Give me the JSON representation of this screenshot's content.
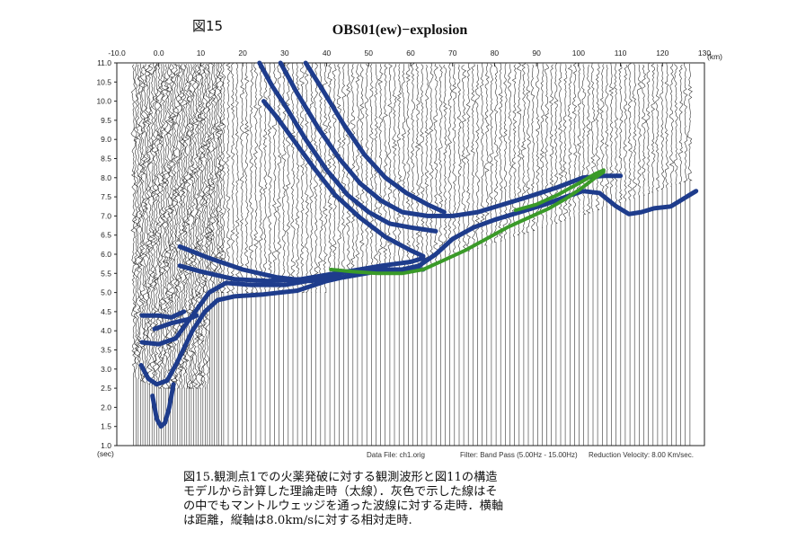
{
  "figure_label": "図15",
  "caption": {
    "lines": [
      "図15.観測点1での火薬発破に対する観測波形と図11の構造",
      "モデルから計算した理論走時（太線）．灰色で示した線はそ",
      "の中でもマントルウェッジを通った波線に対する走時．横軸",
      "は距離，縦軸は8.0km/sに対する相対走時."
    ]
  },
  "footer": {
    "data_file": "Data File: ch1.orig",
    "filter": "Filter: Band Pass (5.00Hz - 15.00Hz)",
    "reduction_velocity": "Reduction Velocity: 8.00 Km/sec."
  },
  "colors": {
    "theory_line": "#1e3c8c",
    "mantle_line": "#3a9a28",
    "trace": "#111111"
  },
  "chart_data": {
    "type": "line",
    "title": "OBS01(ew)−explosion",
    "x_unit": "(km)",
    "y_unit": "(sec)",
    "xlim": [
      -10,
      130
    ],
    "ylim": [
      1.0,
      11.0
    ],
    "x_ticks": [
      "-10.0",
      "0.0",
      "10",
      "20",
      "30",
      "40",
      "50",
      "60",
      "70",
      "80",
      "90",
      "100",
      "110",
      "120",
      "130"
    ],
    "y_ticks": [
      "1.0",
      "1.5",
      "2.0",
      "2.5",
      "3.0",
      "3.5",
      "4.0",
      "4.5",
      "5.0",
      "5.5",
      "6.0",
      "6.5",
      "7.0",
      "7.5",
      "8.0",
      "8.5",
      "9.0",
      "9.5",
      "10.0",
      "10.5",
      "11.0"
    ],
    "grid": false,
    "series": [
      {
        "color": "#1e3c8c",
        "points": [
          [
            -1.5,
            2.3
          ],
          [
            -0.5,
            1.7
          ],
          [
            0.5,
            1.5
          ],
          [
            1.5,
            1.6
          ],
          [
            2.5,
            2.0
          ],
          [
            3.5,
            2.6
          ]
        ]
      },
      {
        "color": "#1e3c8c",
        "points": [
          [
            -4.2,
            3.1
          ],
          [
            -2.5,
            2.75
          ],
          [
            -0.5,
            2.6
          ],
          [
            2,
            2.7
          ],
          [
            4.5,
            3.2
          ],
          [
            8,
            4.0
          ],
          [
            11,
            4.5
          ],
          [
            14,
            4.8
          ],
          [
            18,
            4.9
          ],
          [
            25,
            4.95
          ],
          [
            33,
            5.05
          ],
          [
            40,
            5.3
          ],
          [
            48,
            5.5
          ],
          [
            56,
            5.6
          ],
          [
            63,
            5.6
          ]
        ]
      },
      {
        "color": "#1e3c8c",
        "points": [
          [
            -4,
            3.7
          ],
          [
            0,
            3.65
          ],
          [
            4,
            3.8
          ],
          [
            8,
            4.4
          ],
          [
            12,
            5.0
          ],
          [
            16,
            5.25
          ],
          [
            22,
            5.2
          ],
          [
            30,
            5.2
          ],
          [
            38,
            5.35
          ],
          [
            45,
            5.55
          ],
          [
            53,
            5.7
          ],
          [
            60,
            5.8
          ],
          [
            63,
            5.9
          ]
        ]
      },
      {
        "color": "#1e3c8c",
        "points": [
          [
            -4,
            4.4
          ],
          [
            0,
            4.4
          ],
          [
            3,
            4.35
          ],
          [
            6,
            4.5
          ]
        ]
      },
      {
        "color": "#1e3c8c",
        "points": [
          [
            -1,
            4.05
          ],
          [
            3,
            4.2
          ],
          [
            7,
            4.3
          ],
          [
            9,
            4.4
          ]
        ]
      },
      {
        "color": "#1e3c8c",
        "points": [
          [
            5,
            5.7
          ],
          [
            10,
            5.55
          ],
          [
            18,
            5.35
          ],
          [
            26,
            5.3
          ],
          [
            34,
            5.35
          ],
          [
            42,
            5.5
          ],
          [
            50,
            5.6
          ],
          [
            58,
            5.6
          ],
          [
            62,
            5.7
          ],
          [
            66,
            6.0
          ],
          [
            70,
            6.4
          ],
          [
            75,
            6.7
          ],
          [
            80,
            6.9
          ],
          [
            86,
            7.1
          ],
          [
            92,
            7.3
          ],
          [
            97,
            7.5
          ],
          [
            101,
            7.65
          ],
          [
            105,
            7.6
          ],
          [
            109,
            7.25
          ],
          [
            112,
            7.05
          ],
          [
            115,
            7.1
          ],
          [
            118,
            7.2
          ],
          [
            122,
            7.25
          ],
          [
            125,
            7.45
          ],
          [
            128,
            7.65
          ]
        ]
      },
      {
        "color": "#1e3c8c",
        "points": [
          [
            5,
            6.2
          ],
          [
            12,
            5.9
          ],
          [
            20,
            5.6
          ],
          [
            28,
            5.4
          ],
          [
            36,
            5.3
          ],
          [
            44,
            5.4
          ],
          [
            52,
            5.55
          ],
          [
            60,
            5.6
          ]
        ]
      },
      {
        "color": "#1e3c8c",
        "points": [
          [
            24,
            11.0
          ],
          [
            27,
            10.4
          ],
          [
            30,
            9.9
          ],
          [
            35,
            9.0
          ],
          [
            40,
            8.2
          ],
          [
            45,
            7.55
          ],
          [
            50,
            7.1
          ],
          [
            55,
            6.8
          ],
          [
            60,
            6.7
          ],
          [
            66,
            6.6
          ]
        ]
      },
      {
        "color": "#1e3c8c",
        "points": [
          [
            25,
            10.0
          ],
          [
            28,
            9.6
          ],
          [
            32,
            9.0
          ],
          [
            37,
            8.25
          ],
          [
            42,
            7.55
          ],
          [
            48,
            6.95
          ],
          [
            54,
            6.45
          ],
          [
            60,
            6.1
          ],
          [
            63,
            5.95
          ]
        ]
      },
      {
        "color": "#1e3c8c",
        "points": [
          [
            29,
            11.0
          ],
          [
            33,
            10.2
          ],
          [
            38,
            9.3
          ],
          [
            43,
            8.5
          ],
          [
            48,
            7.85
          ],
          [
            53,
            7.4
          ],
          [
            58,
            7.1
          ],
          [
            64,
            7.0
          ],
          [
            70,
            7.0
          ],
          [
            76,
            7.1
          ],
          [
            82,
            7.3
          ],
          [
            88,
            7.5
          ],
          [
            95,
            7.75
          ],
          [
            101,
            8.0
          ],
          [
            106,
            8.05
          ],
          [
            110,
            8.05
          ]
        ]
      },
      {
        "color": "#1e3c8c",
        "points": [
          [
            35,
            11.0
          ],
          [
            39,
            10.3
          ],
          [
            44,
            9.4
          ],
          [
            49,
            8.6
          ],
          [
            54,
            8.0
          ],
          [
            59,
            7.6
          ],
          [
            64,
            7.3
          ],
          [
            68,
            7.1
          ]
        ]
      },
      {
        "color": "#3a9a28",
        "points": [
          [
            41,
            5.6
          ],
          [
            46,
            5.55
          ],
          [
            52,
            5.5
          ],
          [
            58,
            5.5
          ],
          [
            63,
            5.6
          ],
          [
            68,
            5.85
          ],
          [
            73,
            6.1
          ],
          [
            78,
            6.4
          ],
          [
            83,
            6.7
          ],
          [
            88,
            6.95
          ],
          [
            93,
            7.2
          ],
          [
            97,
            7.45
          ],
          [
            101,
            7.75
          ],
          [
            104,
            8.0
          ],
          [
            106,
            8.15
          ]
        ]
      },
      {
        "color": "#3a9a28",
        "points": [
          [
            85,
            7.15
          ],
          [
            90,
            7.3
          ],
          [
            95,
            7.55
          ],
          [
            100,
            7.85
          ],
          [
            104,
            8.1
          ],
          [
            106,
            8.2
          ]
        ]
      }
    ]
  }
}
